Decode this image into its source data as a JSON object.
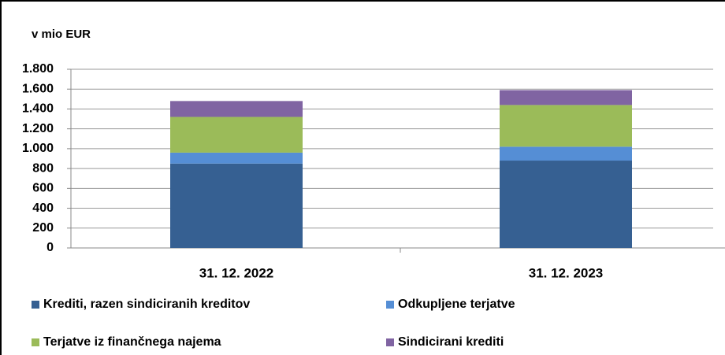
{
  "chart_data": {
    "type": "stacked_bar",
    "title": "v mio EUR",
    "categories": [
      "31. 12. 2022",
      "31. 12. 2023"
    ],
    "series": [
      {
        "name": "Krediti, razen sindiciranih kreditov",
        "color": "#366092",
        "values": [
          850,
          880
        ]
      },
      {
        "name": "Odkupljene terjatve",
        "color": "#558ed5",
        "values": [
          110,
          140
        ]
      },
      {
        "name": "Terjatve iz finančnega najema",
        "color": "#9bbb59",
        "values": [
          360,
          420
        ]
      },
      {
        "name": "Sindicirani krediti",
        "color": "#8064a2",
        "values": [
          160,
          150
        ]
      }
    ],
    "ylim": [
      0,
      1800
    ],
    "yticks": [
      0,
      200,
      400,
      600,
      800,
      {
        "value": 1000,
        "label": "1.000"
      },
      {
        "value": 1200,
        "label": "1.200"
      },
      {
        "value": 1400,
        "label": "1.400"
      },
      {
        "value": 1600,
        "label": "1.600"
      },
      {
        "value": 1800,
        "label": "1.800"
      }
    ],
    "grid": true,
    "legend": "bottom"
  }
}
